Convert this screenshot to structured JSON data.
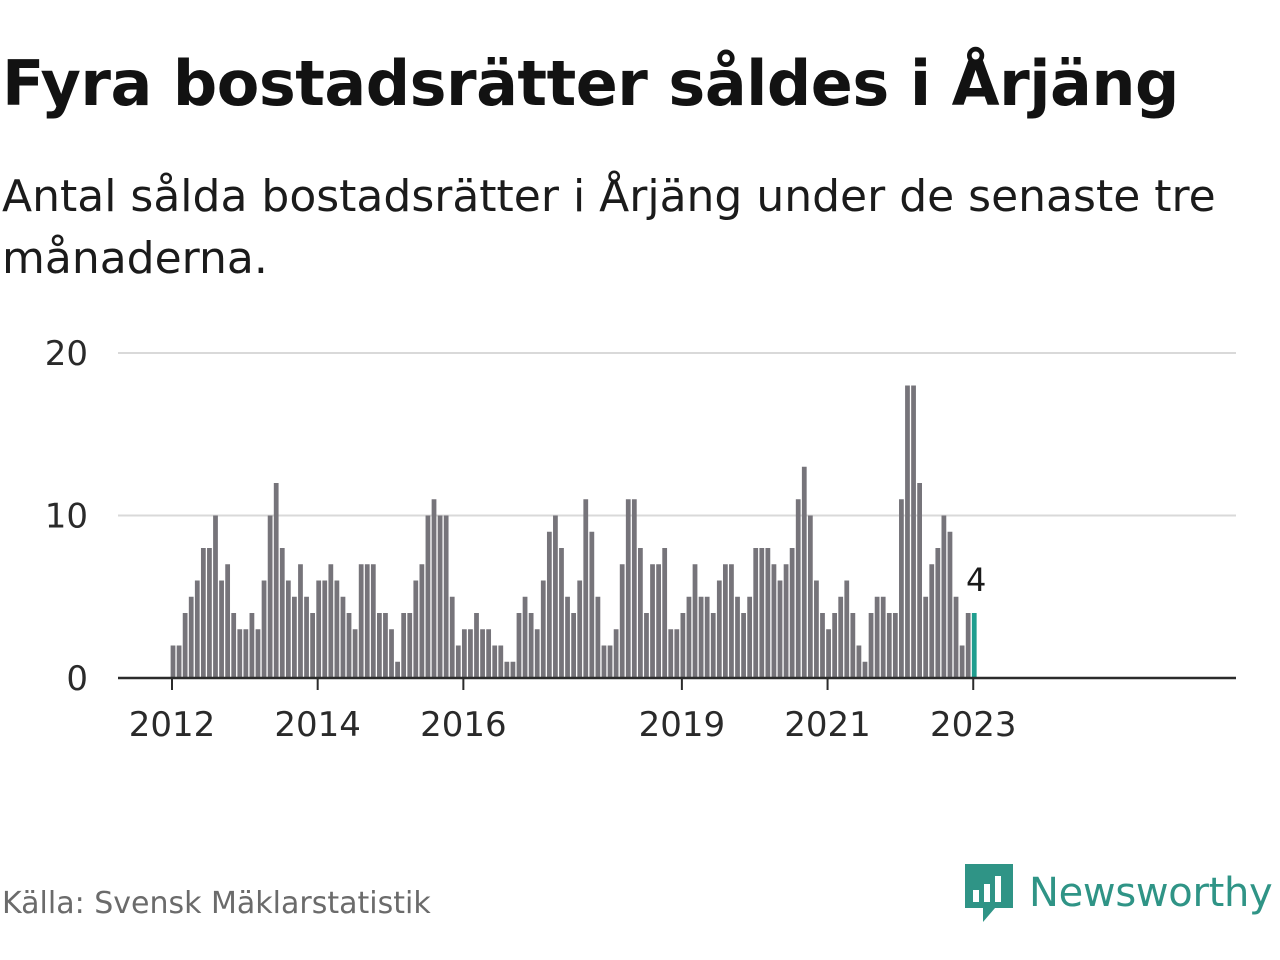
{
  "title": "Fyra bostadsrätter såldes i Årjäng",
  "subtitle": "Antal sålda bostadsrätter i Årjäng under de senaste tre månaderna.",
  "source": "Källa: Svensk Mäklarstatistik",
  "brand": "Newsworthy",
  "colors": {
    "bar": "#76747a",
    "highlight": "#1f9e8f",
    "grid": "#d9d9d9",
    "brand": "#2f9486"
  },
  "chart_data": {
    "type": "bar",
    "title": "Fyra bostadsrätter såldes i Årjäng",
    "subtitle": "Antal sålda bostadsrätter i Årjäng under de senaste tre månaderna.",
    "xlabel": "",
    "ylabel": "",
    "ylim": [
      0,
      20
    ],
    "yticks": [
      0,
      10,
      20
    ],
    "grid": true,
    "start": "2012-01",
    "xticks": [
      "2012",
      "2014",
      "2016",
      "2019",
      "2021",
      "2023"
    ],
    "values": [
      2,
      2,
      4,
      5,
      6,
      8,
      8,
      10,
      6,
      7,
      4,
      3,
      3,
      4,
      3,
      6,
      10,
      12,
      8,
      6,
      5,
      7,
      5,
      4,
      6,
      6,
      7,
      6,
      5,
      4,
      3,
      7,
      7,
      7,
      4,
      4,
      3,
      1,
      4,
      4,
      6,
      7,
      10,
      11,
      10,
      10,
      5,
      2,
      3,
      3,
      4,
      3,
      3,
      2,
      2,
      1,
      1,
      4,
      5,
      4,
      3,
      6,
      9,
      10,
      8,
      5,
      4,
      6,
      11,
      9,
      5,
      2,
      2,
      3,
      7,
      11,
      11,
      8,
      4,
      7,
      7,
      8,
      3,
      3,
      4,
      5,
      7,
      5,
      5,
      4,
      6,
      7,
      7,
      5,
      4,
      5,
      8,
      8,
      8,
      7,
      6,
      7,
      8,
      11,
      13,
      10,
      6,
      4,
      3,
      4,
      5,
      6,
      4,
      2,
      1,
      4,
      5,
      5,
      4,
      4,
      11,
      18,
      18,
      12,
      5,
      7,
      8,
      10,
      9,
      5,
      2,
      4,
      4
    ],
    "highlight_last": true,
    "annotation": "4"
  }
}
